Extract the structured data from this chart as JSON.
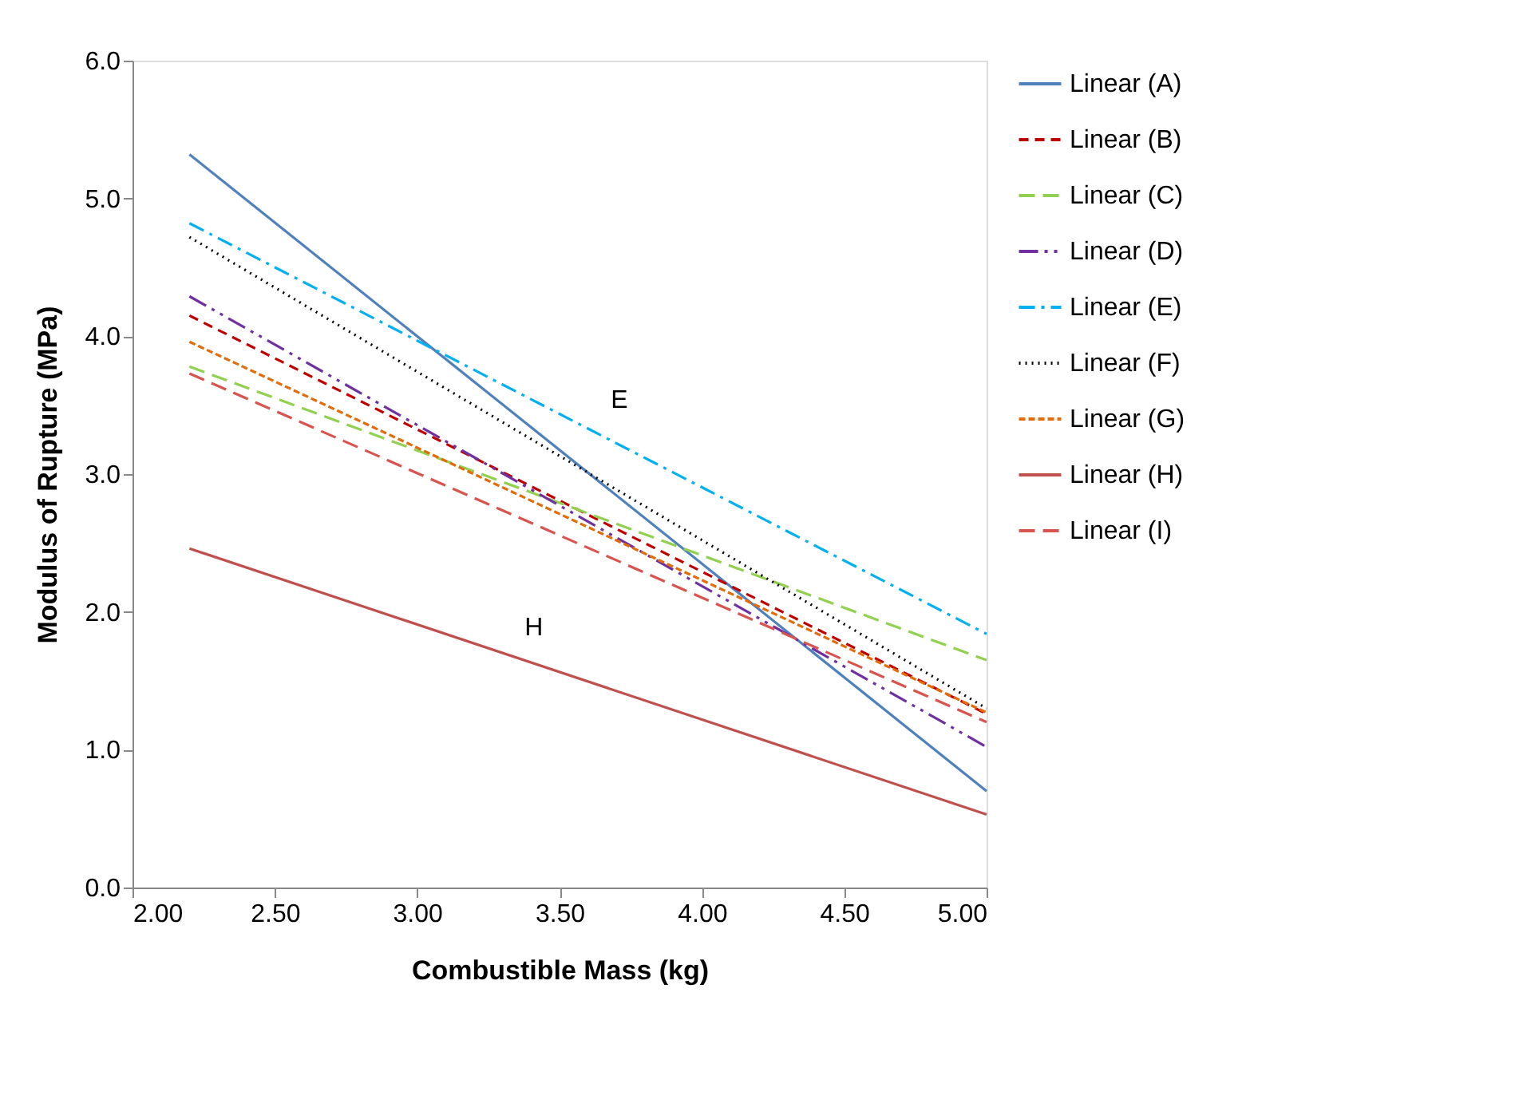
{
  "chart_data": {
    "type": "line",
    "xlabel": "Combustible Mass (kg)",
    "ylabel": "Modulus of Rupture (MPa)",
    "x": [
      2.2,
      5.0
    ],
    "series": [
      {
        "name": "Linear (A)",
        "color": "#4f81bd",
        "line_style": "solid",
        "values": [
          5.32,
          0.7
        ]
      },
      {
        "name": "Linear (B)",
        "color": "#c00000",
        "line_style": "dashed",
        "values": [
          4.15,
          1.26
        ]
      },
      {
        "name": "Linear (C)",
        "color": "#92d050",
        "line_style": "dashed",
        "values": [
          3.78,
          1.65
        ]
      },
      {
        "name": "Linear (D)",
        "color": "#7030a0",
        "line_style": "dashed",
        "values": [
          4.29,
          1.02
        ]
      },
      {
        "name": "Linear (E)",
        "color": "#00b0f0",
        "line_style": "dashed",
        "values": [
          4.82,
          1.84
        ]
      },
      {
        "name": "Linear (F)",
        "color": "#000000",
        "line_style": "dotted",
        "values": [
          4.72,
          1.3
        ]
      },
      {
        "name": "Linear (G)",
        "color": "#e36c09",
        "line_style": "dashed",
        "values": [
          3.96,
          1.27
        ]
      },
      {
        "name": "Linear (H)",
        "color": "#c0504d",
        "line_style": "solid",
        "values": [
          2.46,
          0.53
        ]
      },
      {
        "name": "Linear (I)",
        "color": "#d9534f",
        "line_style": "dashed",
        "values": [
          3.73,
          1.2
        ]
      }
    ],
    "xlim": [
      2.0,
      5.0
    ],
    "xticks": [
      {
        "value": 2,
        "label": "2.00"
      },
      {
        "value": 2.5,
        "label": "2.50"
      },
      {
        "value": 3,
        "label": "3.00"
      },
      {
        "value": 3.5,
        "label": "3.50"
      },
      {
        "value": 4,
        "label": "4.00"
      },
      {
        "value": 4.5,
        "label": "4.50"
      },
      {
        "value": 5,
        "label": "5.00"
      }
    ],
    "ylim": [
      0,
      6
    ],
    "yticks": [
      {
        "value": 0,
        "label": "0.0"
      },
      {
        "value": 1,
        "label": "1.0"
      },
      {
        "value": 2,
        "label": "2.0"
      },
      {
        "value": 3,
        "label": "3.0"
      },
      {
        "value": 4,
        "label": "4.0"
      },
      {
        "value": 5,
        "label": "5.0"
      },
      {
        "value": 6,
        "label": "6.0"
      }
    ],
    "annotations": [
      "E",
      "H"
    ],
    "grid": false,
    "legend": "right",
    "marker": "none"
  }
}
